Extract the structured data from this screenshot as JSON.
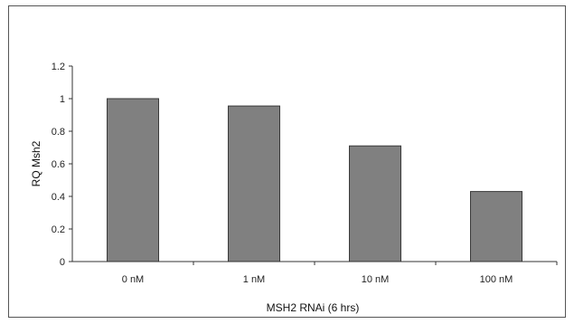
{
  "chart_data": {
    "type": "bar",
    "categories": [
      "0 nM",
      "1 nM",
      "10 nM",
      "100 nM"
    ],
    "values": [
      1.0,
      0.955,
      0.71,
      0.43
    ],
    "title": "",
    "xlabel": "MSH2 RNAi (6 hrs)",
    "ylabel": "RQ Msh2",
    "ylim": [
      0,
      1.2
    ],
    "yticks": [
      "0",
      "0.2",
      "0.4",
      "0.6",
      "0.8",
      "1",
      "1.2"
    ],
    "grid": false,
    "legend": "none",
    "colors": {
      "bar_fill": "#808080",
      "bar_stroke": "#3a3a3a",
      "axis": "#333333",
      "border": "#555555"
    }
  }
}
